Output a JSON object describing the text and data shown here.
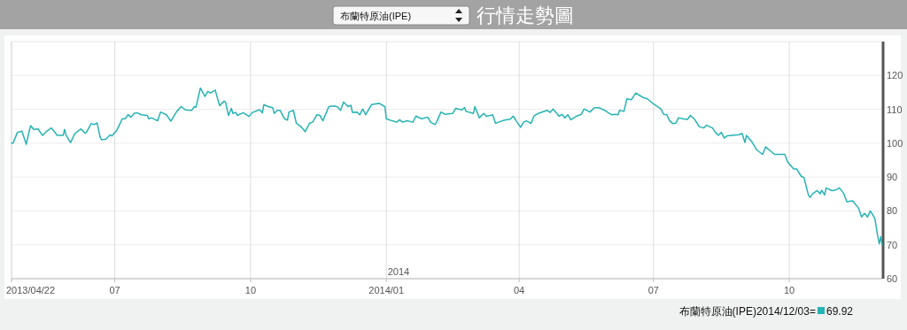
{
  "chart_data": {
    "type": "line",
    "title": "行情走勢圖",
    "subtitle": "布蘭特原油(IPE)",
    "x": [
      "2013-04-22",
      "2013-04-23",
      "2013-04-26",
      "2013-04-28",
      "2013-04-29",
      "2013-05-02",
      "2013-05-04",
      "2013-05-05",
      "2013-05-07",
      "2013-05-10",
      "2013-05-13",
      "2013-05-16",
      "2013-05-19",
      "2013-05-23",
      "2013-05-27",
      "2013-05-28",
      "2013-05-29",
      "2013-06-01",
      "2013-06-04",
      "2013-06-08",
      "2013-06-11",
      "2013-06-12",
      "2013-06-15",
      "2013-06-17",
      "2013-06-19",
      "2013-06-21",
      "2013-06-22",
      "2013-06-25",
      "2013-06-28",
      "2013-06-29",
      "2013-07-02",
      "2013-07-04",
      "2013-07-06",
      "2013-07-08",
      "2013-07-10",
      "2013-07-12",
      "2013-07-14",
      "2013-07-16",
      "2013-07-19",
      "2013-07-23",
      "2013-07-24",
      "2013-07-26",
      "2013-07-30",
      "2013-08-01",
      "2013-08-05",
      "2013-08-08",
      "2013-08-12",
      "2013-08-15",
      "2013-08-18",
      "2013-08-22",
      "2013-08-24",
      "2013-08-25",
      "2013-08-28",
      "2013-08-31",
      "2013-09-02",
      "2013-09-04",
      "2013-09-07",
      "2013-09-10",
      "2013-09-13",
      "2013-09-14",
      "2013-09-16",
      "2013-09-18",
      "2013-09-19",
      "2013-09-21",
      "2013-09-22",
      "2013-09-26",
      "2013-09-30",
      "2013-10-02",
      "2013-10-07",
      "2013-10-09",
      "2013-10-10",
      "2013-10-13",
      "2013-10-16",
      "2013-10-17",
      "2013-10-19",
      "2013-10-21",
      "2013-10-24",
      "2013-10-26",
      "2013-10-27",
      "2013-10-30",
      "2013-11-01",
      "2013-11-04",
      "2013-11-07",
      "2013-11-10",
      "2013-11-12",
      "2013-11-15",
      "2013-11-17",
      "2013-11-19",
      "2013-11-23",
      "2013-11-27",
      "2013-11-29",
      "2013-12-01",
      "2013-12-03",
      "2013-12-06",
      "2013-12-08",
      "2013-12-09",
      "2013-12-12",
      "2013-12-14",
      "2013-12-16",
      "2013-12-18",
      "2013-12-22",
      "2013-12-27",
      "2013-12-31",
      "2014-01-01",
      "2014-01-05",
      "2014-01-08",
      "2014-01-10",
      "2014-01-12",
      "2014-01-15",
      "2014-01-19",
      "2014-01-21",
      "2014-01-25",
      "2014-01-29",
      "2014-01-31",
      "2014-02-03",
      "2014-02-04",
      "2014-02-07",
      "2014-02-10",
      "2014-02-15",
      "2014-02-17",
      "2014-02-21",
      "2014-02-23",
      "2014-02-24",
      "2014-03-01",
      "2014-03-02",
      "2014-03-05",
      "2014-03-08",
      "2014-03-10",
      "2014-03-14",
      "2014-03-16",
      "2014-03-18",
      "2014-03-22",
      "2014-03-26",
      "2014-03-28",
      "2014-03-30",
      "2014-04-02",
      "2014-04-04",
      "2014-04-06",
      "2014-04-09",
      "2014-04-11",
      "2014-04-14",
      "2014-04-16",
      "2014-04-20",
      "2014-04-22",
      "2014-04-24",
      "2014-04-28",
      "2014-04-30",
      "2014-05-02",
      "2014-05-04",
      "2014-05-06",
      "2014-05-10",
      "2014-05-13",
      "2014-05-15",
      "2014-05-19",
      "2014-05-22",
      "2014-05-25",
      "2014-05-29",
      "2014-06-01",
      "2014-06-03",
      "2014-06-05",
      "2014-06-07",
      "2014-06-08",
      "2014-06-11",
      "2014-06-13",
      "2014-06-16",
      "2014-06-19",
      "2014-06-22",
      "2014-06-24",
      "2014-06-27",
      "2014-07-01",
      "2014-07-06",
      "2014-07-08",
      "2014-07-10",
      "2014-07-12",
      "2014-07-14",
      "2014-07-16",
      "2014-07-18",
      "2014-07-21",
      "2014-07-24",
      "2014-07-26",
      "2014-07-29",
      "2014-08-01",
      "2014-08-04",
      "2014-08-06",
      "2014-08-10",
      "2014-08-12",
      "2014-08-14",
      "2014-08-16",
      "2014-08-18",
      "2014-08-20",
      "2014-08-23",
      "2014-08-28",
      "2014-08-30",
      "2014-09-01",
      "2014-09-02",
      "2014-09-06",
      "2014-09-09",
      "2014-09-13",
      "2014-09-15",
      "2014-09-18",
      "2014-09-21",
      "2014-09-28",
      "2014-09-30",
      "2014-10-04",
      "2014-10-06",
      "2014-10-09",
      "2014-10-11",
      "2014-10-14",
      "2014-10-15",
      "2014-10-17",
      "2014-10-20",
      "2014-10-22",
      "2014-10-23",
      "2014-10-25",
      "2014-10-26",
      "2014-10-30",
      "2014-11-01",
      "2014-11-04",
      "2014-11-07",
      "2014-11-09",
      "2014-11-13",
      "2014-11-17",
      "2014-11-19",
      "2014-11-21",
      "2014-11-23",
      "2014-11-25",
      "2014-11-28",
      "2014-11-30",
      "2014-12-01",
      "2014-12-02",
      "2014-12-03"
    ],
    "series": [
      {
        "color": "#26b3b3",
        "values": [
          100.0,
          100.0,
          103.2,
          103.4,
          103.6,
          99.7,
          103.6,
          105.2,
          104.1,
          104.2,
          102.3,
          103.6,
          104.5,
          102.3,
          102.3,
          104.1,
          102.3,
          100.2,
          102.9,
          104.2,
          102.9,
          103.4,
          105.8,
          105.5,
          106.0,
          101.9,
          101.0,
          101.2,
          102.5,
          102.1,
          103.6,
          105.3,
          107.2,
          107.2,
          108.4,
          107.7,
          108.8,
          109.0,
          108.4,
          108.2,
          107.2,
          107.5,
          106.6,
          109.2,
          108.4,
          106.5,
          109.4,
          110.8,
          109.8,
          109.7,
          110.8,
          110.6,
          116.3,
          113.8,
          115.3,
          114.8,
          115.7,
          111.1,
          112.4,
          112.2,
          108.2,
          110.3,
          108.8,
          109.1,
          108.2,
          109.0,
          107.9,
          109.0,
          109.9,
          109.0,
          111.4,
          110.8,
          110.5,
          108.8,
          109.7,
          109.7,
          107.2,
          106.8,
          109.2,
          109.7,
          105.9,
          104.9,
          103.4,
          105.9,
          106.2,
          108.4,
          108.2,
          106.6,
          110.8,
          111.0,
          110.7,
          109.7,
          112.2,
          110.8,
          111.2,
          109.1,
          109.2,
          108.4,
          110.1,
          108.4,
          111.4,
          111.8,
          110.8,
          107.2,
          106.6,
          106.2,
          106.9,
          106.2,
          106.6,
          106.2,
          108.0,
          107.2,
          107.7,
          106.2,
          105.5,
          106.2,
          109.2,
          108.5,
          108.8,
          110.3,
          109.8,
          110.5,
          109.4,
          108.8,
          110.8,
          107.5,
          108.8,
          107.9,
          108.4,
          105.9,
          106.2,
          106.8,
          107.1,
          108.0,
          106.6,
          104.7,
          106.2,
          106.6,
          105.8,
          108.0,
          108.8,
          109.1,
          109.7,
          109.1,
          110.1,
          108.0,
          108.5,
          107.5,
          108.4,
          106.9,
          108.0,
          108.5,
          110.1,
          109.2,
          110.5,
          110.5,
          109.7,
          108.8,
          108.4,
          108.5,
          108.4,
          109.7,
          109.4,
          113.1,
          112.8,
          114.8,
          114.0,
          113.5,
          113.1,
          111.6,
          110.1,
          108.5,
          108.4,
          106.6,
          105.8,
          105.9,
          107.5,
          107.2,
          107.0,
          108.2,
          107.0,
          104.9,
          104.5,
          105.3,
          104.5,
          103.2,
          102.3,
          103.2,
          101.5,
          102.2,
          102.3,
          102.5,
          102.9,
          100.2,
          102.3,
          100.2,
          98.0,
          96.7,
          98.9,
          97.8,
          96.7,
          96.7,
          94.4,
          92.4,
          92.4,
          90.3,
          89.8,
          84.7,
          84.0,
          85.1,
          86.0,
          85.1,
          86.1,
          84.7,
          86.8,
          86.0,
          86.1,
          86.8,
          85.1,
          82.7,
          83.0,
          80.8,
          78.2,
          79.3,
          78.2,
          80.0,
          77.8,
          72.5,
          70.3,
          72.4,
          69.92
        ]
      }
    ],
    "xlim": [
      "2013-04-22",
      "2014-12-03"
    ],
    "xticks": [
      {
        "value": "2013-04-22",
        "label": "2013/04/22"
      },
      {
        "value": "2013-07-01",
        "label": "07"
      },
      {
        "value": "2013-10-01",
        "label": "10"
      },
      {
        "value": "2014-01-01",
        "label": "2014/01"
      },
      {
        "value": "2014-04-01",
        "label": "04"
      },
      {
        "value": "2014-07-01",
        "label": "07"
      },
      {
        "value": "2014-10-01",
        "label": "10"
      }
    ],
    "ylim": [
      60,
      130
    ],
    "yticks": [
      60,
      70,
      80,
      90,
      100,
      110,
      120
    ],
    "grid": true,
    "annotations": [
      "2014",
      "布蘭特原油(IPE)2014/12/03= 69.92"
    ]
  }
}
